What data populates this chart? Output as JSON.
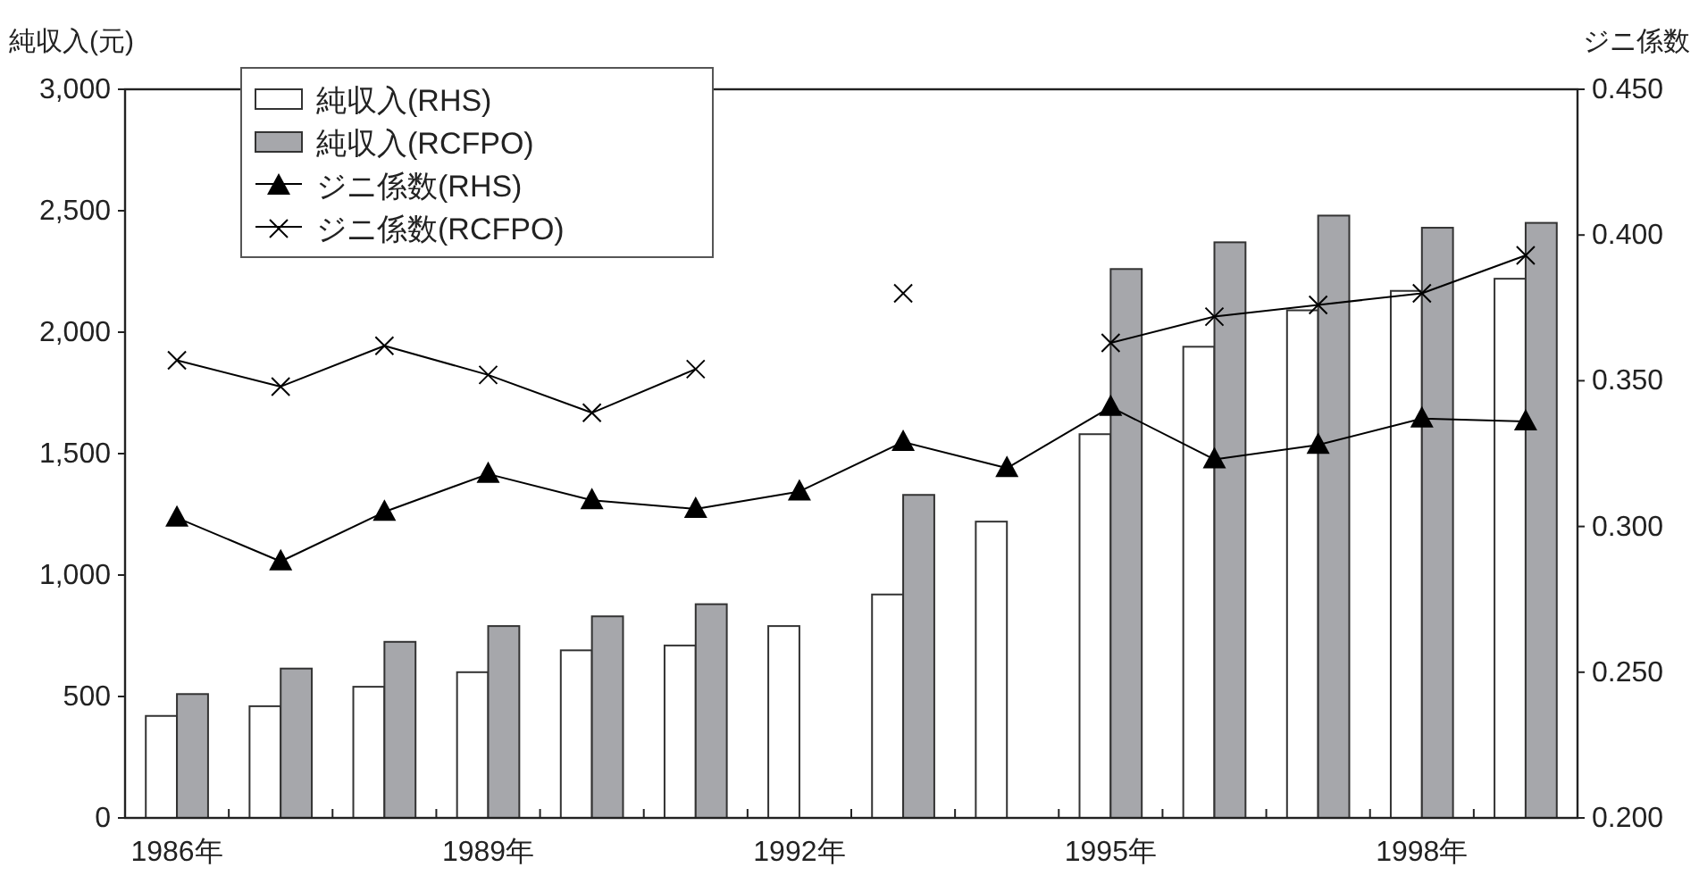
{
  "chart_data": {
    "type": "bar",
    "ylabel": "純収入(元)",
    "y2label": "ジニ係数",
    "categories": [
      "1986年",
      null,
      null,
      "1989年",
      null,
      null,
      "1992年",
      null,
      null,
      "1995年",
      null,
      null,
      "1998年",
      null
    ],
    "series": [
      {
        "name": "純収入(RHS)",
        "color": "#ffffff",
        "values": [
          420,
          460,
          540,
          600,
          690,
          710,
          790,
          920,
          1220,
          1580,
          1940,
          2090,
          2170,
          2220
        ]
      },
      {
        "name": "純収入(RCFPO)",
        "color": "#a6a7ab",
        "values": [
          510,
          615,
          725,
          790,
          830,
          880,
          null,
          1330,
          null,
          2260,
          2370,
          2480,
          2430,
          2450
        ]
      },
      {
        "name": "ジニ係数(RHS)",
        "type": "line",
        "axis": "y2",
        "color": "#000000",
        "marker": "triangle",
        "values": [
          0.303,
          0.288,
          0.305,
          0.318,
          0.309,
          0.306,
          0.312,
          0.329,
          0.32,
          0.341,
          0.323,
          0.328,
          0.337,
          0.336
        ]
      },
      {
        "name": "ジニ係数(RCFPO)",
        "type": "line",
        "axis": "y2",
        "color": "#000000",
        "marker": "cross",
        "values": [
          0.357,
          0.348,
          0.362,
          0.352,
          0.339,
          0.354,
          null,
          0.38,
          null,
          0.363,
          0.372,
          0.376,
          0.38,
          0.393
        ]
      }
    ],
    "ylim": [
      0,
      3000
    ],
    "yticks": [
      {
        "value": 0,
        "label": "0"
      },
      {
        "value": 500,
        "label": "500"
      },
      {
        "value": 1000,
        "label": "1,000"
      },
      {
        "value": 1500,
        "label": "1,500"
      },
      {
        "value": 2000,
        "label": "2,000"
      },
      {
        "value": 2500,
        "label": "2,500"
      },
      {
        "value": 3000,
        "label": "3,000"
      }
    ],
    "y2lim": [
      0.2,
      0.45
    ],
    "y2ticks": [
      {
        "value": 0.2,
        "label": "0.200"
      },
      {
        "value": 0.25,
        "label": "0.250"
      },
      {
        "value": 0.3,
        "label": "0.300"
      },
      {
        "value": 0.35,
        "label": "0.350"
      },
      {
        "value": 0.4,
        "label": "0.400"
      },
      {
        "value": 0.45,
        "label": "0.450"
      }
    ],
    "grid": false,
    "legend": "top left"
  }
}
